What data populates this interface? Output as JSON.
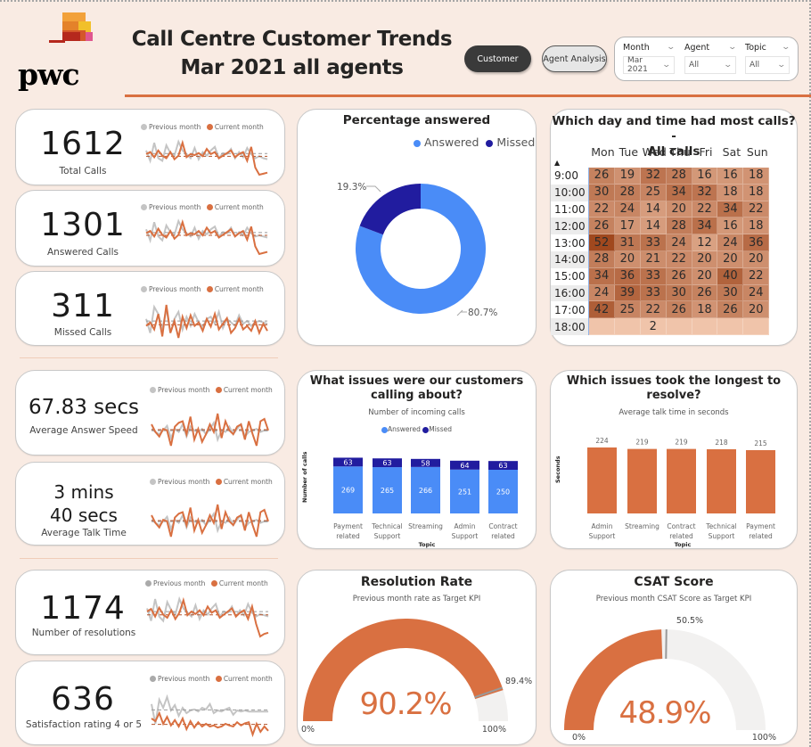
{
  "header": {
    "logo_text": "pwc",
    "title_line1": "Call Centre Customer Trends",
    "title_line2": "Mar 2021 all agents",
    "nav_buttons": [
      {
        "label": "Customer",
        "active": true
      },
      {
        "label": "Agent Analysis",
        "active": false
      }
    ],
    "filters": [
      {
        "label": "Month",
        "value": "Mar 2021"
      },
      {
        "label": "Agent",
        "value": "All"
      },
      {
        "label": "Topic",
        "value": "All"
      }
    ]
  },
  "colors": {
    "accent": "#d97041",
    "previous": "#c4c4c4",
    "answered": "#4a8cf7",
    "missed": "#211c9f",
    "gauge_bg": "#f2f1f0",
    "background": "#f9ebe3"
  },
  "legend": {
    "previous": "Previous month",
    "current": "Current month"
  },
  "kpis": [
    {
      "id": "total-calls",
      "value": "1612",
      "label": "Total Calls",
      "prev": [
        55,
        35,
        70,
        40,
        35,
        65,
        50,
        45,
        72,
        55,
        48,
        40,
        60,
        38,
        52,
        45,
        55,
        62,
        40,
        50,
        48,
        58,
        40,
        52,
        42,
        60,
        48,
        40,
        44,
        40,
        38
      ],
      "curr": [
        48,
        52,
        42,
        55,
        45,
        40,
        52,
        38,
        45,
        70,
        42,
        48,
        46,
        50,
        44,
        58,
        48,
        52,
        40,
        45,
        50,
        55,
        42,
        48,
        52,
        35,
        62,
        22,
        8,
        10,
        12
      ]
    },
    {
      "id": "answered-calls",
      "value": "1301",
      "label": "Answered Calls",
      "prev": [
        55,
        35,
        68,
        42,
        35,
        62,
        50,
        45,
        70,
        55,
        48,
        42,
        58,
        38,
        52,
        46,
        55,
        60,
        42,
        50,
        48,
        58,
        42,
        50,
        44,
        58,
        48,
        42,
        44,
        42,
        40
      ],
      "curr": [
        48,
        52,
        42,
        56,
        45,
        40,
        52,
        38,
        45,
        68,
        44,
        48,
        46,
        52,
        44,
        58,
        48,
        52,
        40,
        45,
        50,
        55,
        42,
        48,
        52,
        36,
        60,
        24,
        10,
        12,
        14
      ]
    },
    {
      "id": "missed-calls",
      "value": "311",
      "label": "Missed Calls",
      "prev": [
        55,
        35,
        72,
        62,
        40,
        70,
        35,
        55,
        65,
        40,
        58,
        45,
        62,
        50,
        44,
        55,
        58,
        48,
        65,
        42,
        55,
        50,
        45,
        60,
        48,
        52,
        45,
        50,
        52,
        50,
        48
      ],
      "curr": [
        45,
        50,
        40,
        62,
        30,
        75,
        35,
        52,
        28,
        58,
        42,
        60,
        45,
        50,
        38,
        55,
        44,
        62,
        40,
        48,
        56,
        35,
        42,
        55,
        40,
        45,
        38,
        52,
        35,
        48,
        38
      ]
    },
    {
      "id": "average-answer-speed",
      "value": "67.83 secs",
      "label": "Average Answer Speed",
      "prev": [
        52,
        48,
        45,
        50,
        56,
        40,
        52,
        48,
        58,
        42,
        55,
        50,
        48,
        52,
        45,
        52,
        60,
        38,
        50,
        48,
        55,
        45,
        52,
        58,
        42,
        48,
        50,
        52,
        48,
        50,
        50
      ],
      "curr": [
        58,
        48,
        42,
        52,
        50,
        30,
        55,
        60,
        62,
        45,
        68,
        38,
        52,
        35,
        45,
        58,
        48,
        72,
        40,
        62,
        50,
        45,
        55,
        58,
        38,
        62,
        45,
        30,
        62,
        65,
        50
      ]
    },
    {
      "id": "average-talk-time",
      "value_line1": "3 mins",
      "value_line2": "40 secs",
      "label": "Average Talk Time",
      "prev": [
        52,
        48,
        45,
        50,
        56,
        40,
        52,
        48,
        58,
        42,
        55,
        50,
        48,
        52,
        45,
        52,
        60,
        38,
        50,
        48,
        55,
        45,
        52,
        58,
        42,
        48,
        50,
        52,
        48,
        50,
        50
      ],
      "curr": [
        58,
        48,
        42,
        52,
        50,
        30,
        55,
        60,
        62,
        45,
        68,
        38,
        52,
        35,
        45,
        58,
        48,
        72,
        40,
        62,
        50,
        45,
        55,
        58,
        38,
        62,
        45,
        30,
        62,
        65,
        50
      ]
    },
    {
      "id": "number-of-resolutions",
      "value": "1174",
      "label": "Number of resolutions",
      "prev": [
        55,
        35,
        70,
        42,
        35,
        65,
        52,
        45,
        70,
        55,
        48,
        42,
        60,
        38,
        52,
        45,
        55,
        62,
        42,
        50,
        48,
        58,
        42,
        52,
        44,
        62,
        48,
        42,
        46,
        44,
        42
      ],
      "curr": [
        50,
        54,
        42,
        56,
        45,
        40,
        52,
        38,
        48,
        68,
        44,
        50,
        46,
        52,
        44,
        58,
        48,
        52,
        40,
        45,
        50,
        55,
        42,
        48,
        52,
        38,
        58,
        30,
        10,
        14,
        16
      ]
    },
    {
      "id": "satisfaction-rating",
      "value": "636",
      "label": "Satisfaction rating 4 or 5",
      "prev": [
        72,
        35,
        80,
        65,
        85,
        60,
        70,
        50,
        65,
        55,
        60,
        62,
        58,
        65,
        62,
        72,
        55,
        60,
        58,
        62,
        65,
        52,
        60,
        58,
        60,
        58,
        58,
        58,
        58,
        58,
        58
      ],
      "curr": [
        45,
        40,
        55,
        35,
        48,
        32,
        42,
        30,
        45,
        25,
        40,
        28,
        38,
        30,
        35,
        30,
        32,
        28,
        30,
        35,
        32,
        30,
        38,
        32,
        36,
        38,
        15,
        35,
        20,
        30,
        22
      ]
    }
  ],
  "percentage_answered": {
    "title": "Percentage answered",
    "legend": [
      "Answered",
      "Missed"
    ],
    "chart_data": {
      "type": "pie",
      "title": "Percentage answered",
      "categories": [
        "Answered",
        "Missed"
      ],
      "values": [
        80.7,
        19.3
      ],
      "labels": [
        "80.7%",
        "19.3%"
      ],
      "legend_position": "top-right"
    }
  },
  "heatmap": {
    "title_line1": "Which day and time had most calls? -",
    "title_line2": "All calls",
    "sort_indicator": "▲",
    "chart_data": {
      "type": "heatmap",
      "title": "Which day and time had most calls? - All calls",
      "columns": [
        "Mon",
        "Tue",
        "Wed",
        "Thu",
        "Fri",
        "Sat",
        "Sun"
      ],
      "rows": [
        "9:00",
        "10:00",
        "11:00",
        "12:00",
        "13:00",
        "14:00",
        "15:00",
        "16:00",
        "17:00",
        "18:00"
      ],
      "values": [
        [
          26,
          19,
          32,
          28,
          16,
          16,
          18
        ],
        [
          30,
          28,
          25,
          34,
          32,
          18,
          18
        ],
        [
          22,
          24,
          14,
          20,
          22,
          34,
          22
        ],
        [
          26,
          17,
          14,
          28,
          34,
          16,
          18
        ],
        [
          52,
          31,
          33,
          24,
          12,
          24,
          36
        ],
        [
          28,
          20,
          21,
          22,
          20,
          20,
          20
        ],
        [
          34,
          36,
          33,
          26,
          20,
          40,
          22
        ],
        [
          24,
          39,
          33,
          30,
          26,
          30,
          24
        ],
        [
          42,
          25,
          22,
          26,
          18,
          26,
          20
        ],
        [
          null,
          null,
          2,
          null,
          null,
          null,
          null
        ]
      ]
    }
  },
  "issues_chart": {
    "title_line1": "What issues were our customers",
    "title_line2": "calling about?",
    "subtitle": "Number of incoming calls",
    "chart_data": {
      "type": "bar",
      "stacked": true,
      "title": "What issues were our customers calling about?",
      "subtitle": "Number of incoming calls",
      "xlabel": "Topic",
      "ylabel": "Number of calls",
      "categories": [
        "Payment related",
        "Technical Support",
        "Streaming",
        "Admin Support",
        "Contract related"
      ],
      "category_lines": [
        [
          "Payment",
          "related"
        ],
        [
          "Technical",
          "Support"
        ],
        [
          "Streaming"
        ],
        [
          "Admin",
          "Support"
        ],
        [
          "Contract",
          "related"
        ]
      ],
      "series": [
        {
          "name": "Answered",
          "values": [
            269,
            265,
            266,
            251,
            250
          ]
        },
        {
          "name": "Missed",
          "values": [
            63,
            63,
            58,
            64,
            63
          ]
        }
      ],
      "ylim": [
        0,
        340
      ],
      "legend_position": "top-center"
    }
  },
  "longest_chart": {
    "title_line1": "Which issues took the longest to",
    "title_line2": "resolve?",
    "subtitle": "Average talk time in seconds",
    "chart_data": {
      "type": "bar",
      "title": "Which issues took the longest to resolve?",
      "subtitle": "Average talk time in seconds",
      "xlabel": "Topic",
      "ylabel": "Seconds",
      "categories": [
        "Admin Support",
        "Streaming",
        "Contract related",
        "Technical Support",
        "Payment related"
      ],
      "category_lines": [
        [
          "Admin",
          "Support"
        ],
        [
          "Streaming"
        ],
        [
          "Contract",
          "related"
        ],
        [
          "Technical",
          "Support"
        ],
        [
          "Payment",
          "related"
        ]
      ],
      "values": [
        224,
        219,
        219,
        218,
        215
      ],
      "ylim": [
        0,
        230
      ]
    }
  },
  "resolution_gauge": {
    "title": "Resolution Rate",
    "subtitle": "Previous month rate as Target KPI",
    "value": 90.2,
    "value_label": "90.2%",
    "target": 89.4,
    "target_label": "89.4%",
    "min_label": "0%",
    "max_label": "100%"
  },
  "csat_gauge": {
    "title": "CSAT Score",
    "subtitle": "Previous month CSAT Score as Target KPI",
    "value": 48.9,
    "value_label": "48.9%",
    "target": 50.5,
    "target_label": "50.5%",
    "min_label": "0%",
    "max_label": "100%"
  }
}
